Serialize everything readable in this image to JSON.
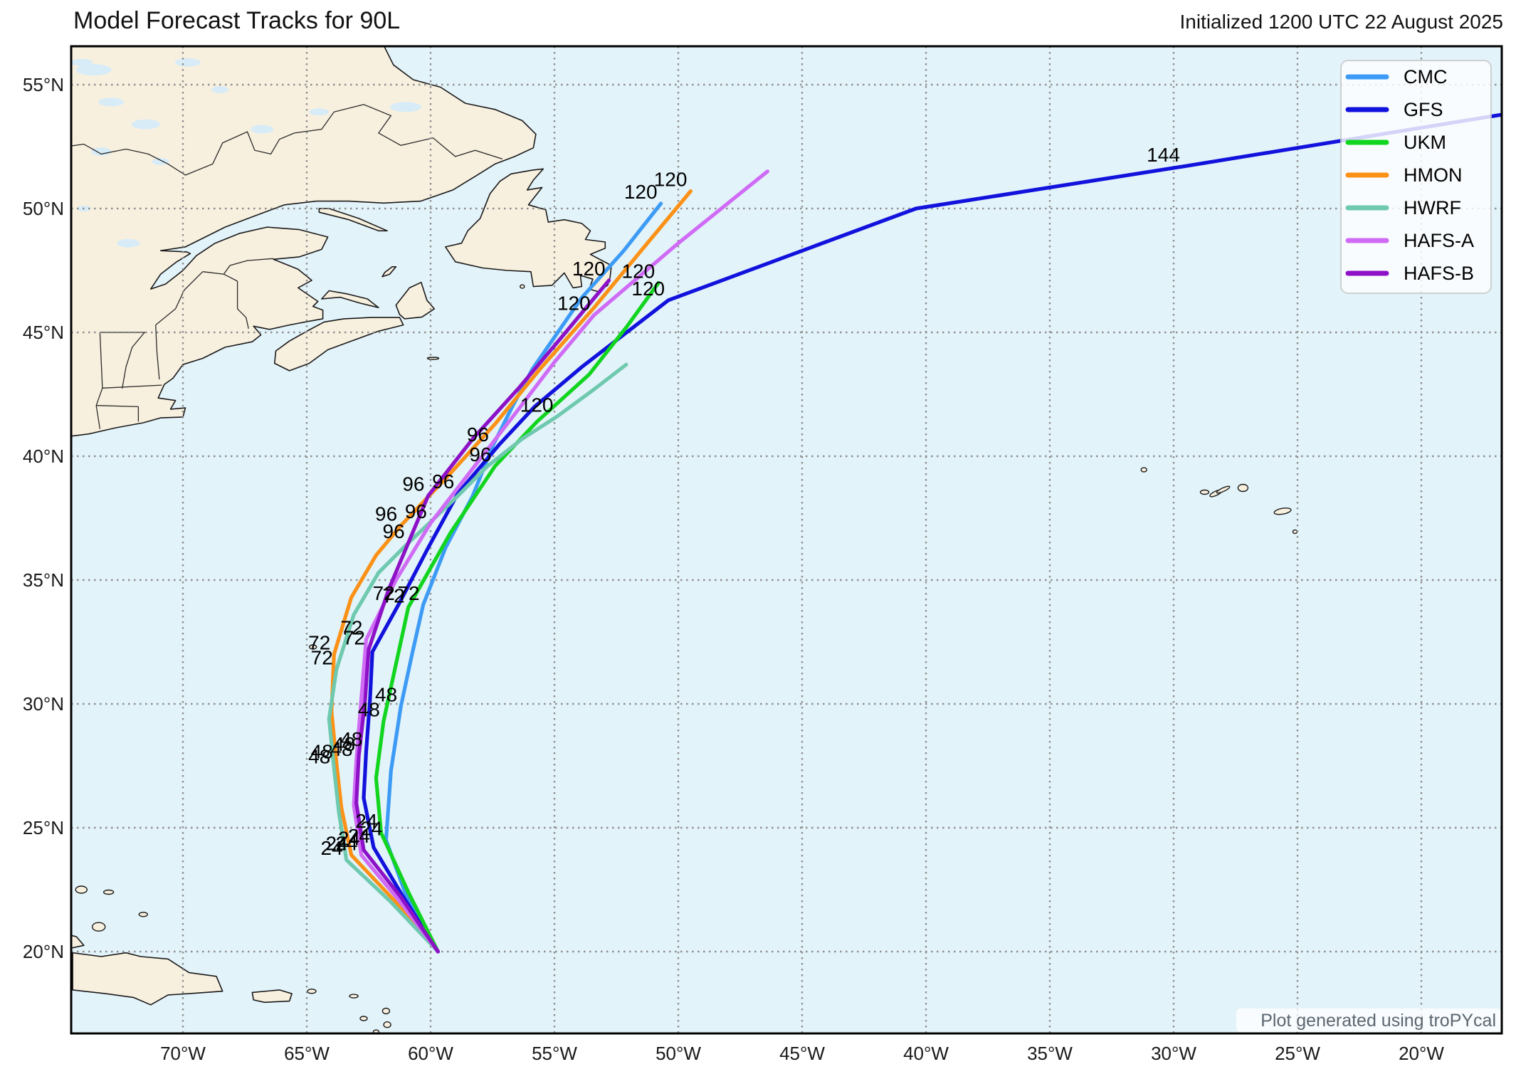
{
  "title": "Model Forecast Tracks for 90L",
  "init_label": "Initialized 1200 UTC 22 August 2025",
  "credit": "Plot generated using troPYcal",
  "colors": {
    "sea": "#e3f3fa",
    "land": "#f8f0df",
    "lake": "#d7ecf7",
    "gridline": "#8f8f8f",
    "frame": "#000000",
    "hour_label": "#000000"
  },
  "legend": {
    "entries": [
      {
        "label": "CMC",
        "color": "#3d9bf5"
      },
      {
        "label": "GFS",
        "color": "#1212dd"
      },
      {
        "label": "UKM",
        "color": "#12d51f"
      },
      {
        "label": "HMON",
        "color": "#fb9116"
      },
      {
        "label": "HWRF",
        "color": "#6ec9ae"
      },
      {
        "label": "HAFS-A",
        "color": "#cf6bf5"
      },
      {
        "label": "HAFS-B",
        "color": "#8d12c7"
      }
    ]
  },
  "axes": {
    "grid": true,
    "lon_tick_labels": [
      "70°W",
      "65°W",
      "60°W",
      "55°W",
      "50°W",
      "45°W",
      "40°W",
      "35°W",
      "30°W",
      "25°W",
      "20°W"
    ],
    "lon_tick_values": [
      -70,
      -65,
      -60,
      -55,
      -50,
      -45,
      -40,
      -35,
      -30,
      -25,
      -20
    ],
    "lat_tick_labels": [
      "55°N",
      "50°N",
      "45°N",
      "40°N",
      "35°N",
      "30°N",
      "25°N",
      "20°N"
    ],
    "lat_tick_values": [
      55,
      50,
      45,
      40,
      35,
      30,
      25,
      20
    ],
    "lon_range": [
      -74.5,
      -16.8
    ],
    "lat_range": [
      16.7,
      56.5
    ]
  },
  "chart_data": {
    "type": "line",
    "kind": "geographic-forecast-tracks",
    "storm_id": "90L",
    "init_time": "1200 UTC 22 August 2025",
    "start_point": {
      "lat": 20.0,
      "lon": -59.7
    },
    "models": [
      {
        "name": "CMC",
        "color": "#3d9bf5",
        "points": [
          [
            20.0,
            -59.7
          ],
          [
            22.3,
            -61.0
          ],
          [
            24.5,
            -61.8
          ],
          [
            27.3,
            -61.6
          ],
          [
            29.9,
            -61.2
          ],
          [
            32.0,
            -60.75
          ],
          [
            34.0,
            -60.3
          ],
          [
            36.3,
            -59.4
          ],
          [
            38.4,
            -58.3
          ],
          [
            40.4,
            -57.5
          ],
          [
            42.0,
            -56.7
          ],
          [
            43.5,
            -55.9
          ],
          [
            46.4,
            -53.9
          ],
          [
            48.3,
            -52.2
          ],
          [
            50.2,
            -50.7
          ]
        ],
        "hour_labels": [
          {
            "hour": 24,
            "lat": 24.5,
            "lon": -61.8
          },
          {
            "hour": 48,
            "lat": 29.9,
            "lon": -61.2
          },
          {
            "hour": 72,
            "lat": 34.0,
            "lon": -60.3
          },
          {
            "hour": 96,
            "lat": 40.4,
            "lon": -57.5
          },
          {
            "hour": 120,
            "lat": 50.2,
            "lon": -50.7
          }
        ]
      },
      {
        "name": "GFS",
        "color": "#1212dd",
        "points": [
          [
            20.0,
            -59.7
          ],
          [
            22.2,
            -61.1
          ],
          [
            24.2,
            -62.3
          ],
          [
            26.2,
            -62.7
          ],
          [
            28.1,
            -62.6
          ],
          [
            30.1,
            -62.45
          ],
          [
            32.1,
            -62.35
          ],
          [
            34.0,
            -61.3
          ],
          [
            36.3,
            -60.1
          ],
          [
            38.5,
            -58.9
          ],
          [
            40.5,
            -57.2
          ],
          [
            42.0,
            -55.8
          ],
          [
            43.6,
            -53.9
          ],
          [
            46.3,
            -50.4
          ],
          [
            50.0,
            -40.4
          ],
          [
            51.7,
            -29.6
          ],
          [
            53.8,
            -16.7
          ]
        ],
        "hour_labels": [
          {
            "hour": 24,
            "lat": 24.2,
            "lon": -62.3
          },
          {
            "hour": 48,
            "lat": 28.1,
            "lon": -62.6
          },
          {
            "hour": 72,
            "lat": 34.0,
            "lon": -61.3
          },
          {
            "hour": 96,
            "lat": 38.5,
            "lon": -58.9
          },
          {
            "hour": 120,
            "lat": 46.3,
            "lon": -50.4
          },
          {
            "hour": 144,
            "lat": 51.7,
            "lon": -29.6
          }
        ]
      },
      {
        "name": "UKM",
        "color": "#12d51f",
        "points": [
          [
            20.0,
            -59.7
          ],
          [
            22.4,
            -60.9
          ],
          [
            24.8,
            -62.0
          ],
          [
            27.0,
            -62.2
          ],
          [
            29.3,
            -61.9
          ],
          [
            31.6,
            -61.4
          ],
          [
            33.9,
            -60.9
          ],
          [
            36.9,
            -59.2
          ],
          [
            39.6,
            -57.4
          ],
          [
            41.4,
            -55.7
          ],
          [
            43.3,
            -53.6
          ],
          [
            45.2,
            -52.1
          ],
          [
            47.0,
            -50.8
          ]
        ],
        "hour_labels": [
          {
            "hour": 24,
            "lat": 24.8,
            "lon": -62.0
          },
          {
            "hour": 48,
            "lat": 29.3,
            "lon": -61.9
          },
          {
            "hour": 72,
            "lat": 33.9,
            "lon": -60.9
          },
          {
            "hour": 96,
            "lat": 39.6,
            "lon": -57.4
          },
          {
            "hour": 120,
            "lat": 47.0,
            "lon": -50.8
          }
        ]
      },
      {
        "name": "HMON",
        "color": "#fb9116",
        "points": [
          [
            20.0,
            -59.7
          ],
          [
            22.1,
            -61.5
          ],
          [
            23.9,
            -63.2
          ],
          [
            25.8,
            -63.6
          ],
          [
            27.6,
            -63.8
          ],
          [
            29.7,
            -64.0
          ],
          [
            32.0,
            -63.9
          ],
          [
            34.3,
            -63.2
          ],
          [
            36.0,
            -62.2
          ],
          [
            37.2,
            -61.2
          ],
          [
            39.2,
            -59.3
          ],
          [
            41.3,
            -57.4
          ],
          [
            43.5,
            -55.6
          ],
          [
            46.0,
            -53.4
          ],
          [
            48.3,
            -51.5
          ],
          [
            50.7,
            -49.5
          ]
        ],
        "hour_labels": [
          {
            "hour": 24,
            "lat": 23.9,
            "lon": -63.2
          },
          {
            "hour": 48,
            "lat": 27.6,
            "lon": -63.8
          },
          {
            "hour": 72,
            "lat": 32.0,
            "lon": -63.9
          },
          {
            "hour": 96,
            "lat": 37.2,
            "lon": -61.2
          },
          {
            "hour": 120,
            "lat": 50.7,
            "lon": -49.5
          }
        ]
      },
      {
        "name": "HWRF",
        "color": "#6ec9ae",
        "points": [
          [
            20.0,
            -59.7
          ],
          [
            22.0,
            -61.6
          ],
          [
            23.7,
            -63.4
          ],
          [
            25.6,
            -63.7
          ],
          [
            27.4,
            -63.9
          ],
          [
            29.4,
            -64.1
          ],
          [
            31.4,
            -63.8
          ],
          [
            33.6,
            -63.1
          ],
          [
            35.3,
            -62.1
          ],
          [
            36.5,
            -60.9
          ],
          [
            38.2,
            -59.1
          ],
          [
            39.6,
            -57.7
          ],
          [
            40.7,
            -56.3
          ],
          [
            41.6,
            -54.9
          ],
          [
            42.7,
            -53.4
          ],
          [
            43.7,
            -52.1
          ]
        ],
        "hour_labels": [
          {
            "hour": 24,
            "lat": 23.7,
            "lon": -63.4
          },
          {
            "hour": 48,
            "lat": 27.4,
            "lon": -63.9
          },
          {
            "hour": 72,
            "lat": 31.4,
            "lon": -63.8
          },
          {
            "hour": 96,
            "lat": 36.5,
            "lon": -60.9
          },
          {
            "hour": 120,
            "lat": 41.6,
            "lon": -54.9
          }
        ]
      },
      {
        "name": "HAFS-A",
        "color": "#cf6bf5",
        "points": [
          [
            20.0,
            -59.7
          ],
          [
            22.1,
            -61.3
          ],
          [
            23.9,
            -62.8
          ],
          [
            25.9,
            -63.1
          ],
          [
            27.7,
            -63.0
          ],
          [
            30.2,
            -62.8
          ],
          [
            32.6,
            -62.6
          ],
          [
            35.0,
            -61.4
          ],
          [
            37.3,
            -60.0
          ],
          [
            39.5,
            -58.3
          ],
          [
            41.7,
            -56.6
          ],
          [
            43.8,
            -55.0
          ],
          [
            45.7,
            -53.4
          ],
          [
            48.6,
            -50.0
          ],
          [
            51.5,
            -46.4
          ]
        ],
        "hour_labels": [
          {
            "hour": 24,
            "lat": 23.9,
            "lon": -62.8
          },
          {
            "hour": 48,
            "lat": 27.7,
            "lon": -63.0
          },
          {
            "hour": 72,
            "lat": 32.6,
            "lon": -62.6
          },
          {
            "hour": 96,
            "lat": 37.3,
            "lon": -60.0
          },
          {
            "hour": 120,
            "lat": 45.7,
            "lon": -53.4
          }
        ]
      },
      {
        "name": "HAFS-B",
        "color": "#8d12c7",
        "points": [
          [
            20.0,
            -59.7
          ],
          [
            22.2,
            -61.2
          ],
          [
            24.1,
            -62.7
          ],
          [
            26.0,
            -63.0
          ],
          [
            27.9,
            -62.9
          ],
          [
            30.1,
            -62.65
          ],
          [
            32.2,
            -62.5
          ],
          [
            34.6,
            -61.7
          ],
          [
            36.5,
            -60.9
          ],
          [
            38.4,
            -60.1
          ],
          [
            40.7,
            -58.3
          ],
          [
            42.8,
            -56.4
          ],
          [
            44.7,
            -54.8
          ],
          [
            47.1,
            -52.8
          ]
        ],
        "hour_labels": [
          {
            "hour": 24,
            "lat": 24.1,
            "lon": -62.7
          },
          {
            "hour": 48,
            "lat": 27.9,
            "lon": -62.9
          },
          {
            "hour": 72,
            "lat": 32.2,
            "lon": -62.5
          },
          {
            "hour": 96,
            "lat": 38.4,
            "lon": -60.1
          },
          {
            "hour": 120,
            "lat": 47.1,
            "lon": -52.8
          }
        ]
      }
    ]
  }
}
